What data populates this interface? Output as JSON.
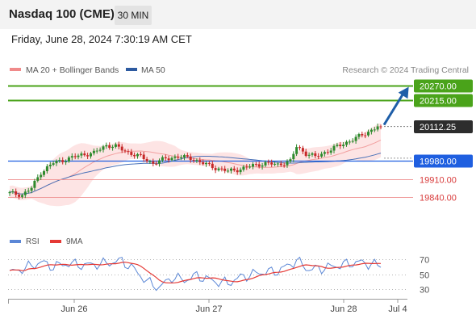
{
  "header": {
    "title": "Nasdaq 100 (CME)",
    "timeframe": "30 MIN",
    "datetime": "Friday, June 28, 2024 7:30:19 AM CET"
  },
  "legend": {
    "items": [
      {
        "label": "MA 20 + Bollinger Bands",
        "color": "#f08a8a"
      },
      {
        "label": "MA 50",
        "color": "#2d5aa0"
      }
    ],
    "credit": "Research © 2024 Trading Central"
  },
  "colors": {
    "up_candle": "#2e8b2e",
    "down_candle": "#c62828",
    "bollinger_fill": "#fde4e4",
    "ma20": "#f2a0a0",
    "ma50": "#4a72b8",
    "target_line": "#4aa31a",
    "pivot_line": "#1f5fe0",
    "support_line": "#f09a9a",
    "arrow": "#1e5ea8"
  },
  "chart_data": [
    {
      "type": "candlestick",
      "x_tick_labels": [
        "Jun 26",
        "Jun 27",
        "Jun 28",
        "Jul 4"
      ],
      "y_range": [
        19780,
        20300
      ],
      "series": [
        {
          "name": "MA 20 + Bollinger Bands",
          "kind": "band"
        },
        {
          "name": "MA 50",
          "kind": "line"
        }
      ],
      "price_start": 19855,
      "price_path": [
        {
          "t": 0,
          "v": 19855
        },
        {
          "t": 4,
          "v": 19848
        },
        {
          "t": 7,
          "v": 19875
        },
        {
          "t": 10,
          "v": 19935
        },
        {
          "t": 14,
          "v": 19972
        },
        {
          "t": 18,
          "v": 19985
        },
        {
          "t": 23,
          "v": 20003
        },
        {
          "t": 27,
          "v": 20010
        },
        {
          "t": 31,
          "v": 20040
        },
        {
          "t": 34,
          "v": 20035
        },
        {
          "t": 38,
          "v": 20012
        },
        {
          "t": 42,
          "v": 19995
        },
        {
          "t": 46,
          "v": 19970
        },
        {
          "t": 50,
          "v": 19988
        },
        {
          "t": 54,
          "v": 19996
        },
        {
          "t": 58,
          "v": 19990
        },
        {
          "t": 62,
          "v": 19970
        },
        {
          "t": 66,
          "v": 19952
        },
        {
          "t": 70,
          "v": 19940
        },
        {
          "t": 74,
          "v": 19948
        },
        {
          "t": 78,
          "v": 19962
        },
        {
          "t": 82,
          "v": 19970
        },
        {
          "t": 86,
          "v": 19965
        },
        {
          "t": 90,
          "v": 19978
        },
        {
          "t": 92,
          "v": 20035
        },
        {
          "t": 95,
          "v": 20008
        },
        {
          "t": 98,
          "v": 19995
        },
        {
          "t": 102,
          "v": 20018
        },
        {
          "t": 106,
          "v": 20040
        },
        {
          "t": 110,
          "v": 20062
        },
        {
          "t": 114,
          "v": 20085
        },
        {
          "t": 118,
          "v": 20112
        }
      ],
      "last_price": 20112.25,
      "levels": [
        {
          "value": 20270.0,
          "label": "20270.00",
          "kind": "resistance"
        },
        {
          "value": 20215.0,
          "label": "20215.00",
          "kind": "resistance"
        },
        {
          "value": 19980.0,
          "label": "19980.00",
          "kind": "pivot"
        },
        {
          "value": 19910.0,
          "label": "19910.00",
          "kind": "support"
        },
        {
          "value": 19840.0,
          "label": "19840.00",
          "kind": "support"
        }
      ],
      "projection": {
        "from": 20112.25,
        "to": 20270.0
      }
    },
    {
      "type": "line",
      "y_ticks": [
        70,
        50,
        30
      ],
      "y_range": [
        20,
        80
      ],
      "series": [
        {
          "name": "RSI",
          "color": "#5b87d6"
        },
        {
          "name": "9MA",
          "color": "#e53935"
        }
      ],
      "rsi_path": [
        {
          "t": 0,
          "v": 52
        },
        {
          "t": 5,
          "v": 58
        },
        {
          "t": 10,
          "v": 66
        },
        {
          "t": 14,
          "v": 60
        },
        {
          "t": 18,
          "v": 64
        },
        {
          "t": 24,
          "v": 62
        },
        {
          "t": 30,
          "v": 64
        },
        {
          "t": 36,
          "v": 68
        },
        {
          "t": 40,
          "v": 56
        },
        {
          "t": 44,
          "v": 40
        },
        {
          "t": 48,
          "v": 32
        },
        {
          "t": 52,
          "v": 46
        },
        {
          "t": 56,
          "v": 42
        },
        {
          "t": 60,
          "v": 48
        },
        {
          "t": 66,
          "v": 40
        },
        {
          "t": 70,
          "v": 38
        },
        {
          "t": 74,
          "v": 46
        },
        {
          "t": 80,
          "v": 52
        },
        {
          "t": 86,
          "v": 54
        },
        {
          "t": 92,
          "v": 68
        },
        {
          "t": 96,
          "v": 56
        },
        {
          "t": 100,
          "v": 58
        },
        {
          "t": 106,
          "v": 62
        },
        {
          "t": 112,
          "v": 66
        },
        {
          "t": 118,
          "v": 62
        }
      ]
    }
  ]
}
